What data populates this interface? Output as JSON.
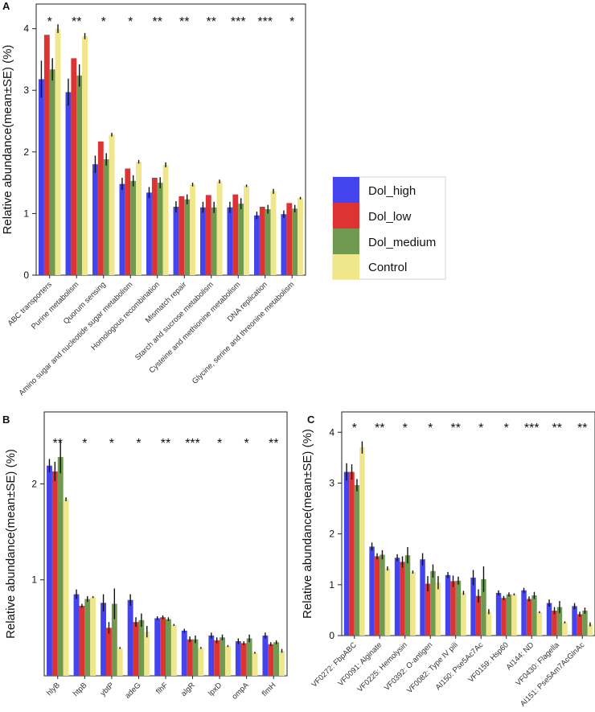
{
  "legend": {
    "entries": [
      {
        "name": "Dol_high",
        "color": "#4444ee"
      },
      {
        "name": "Dol_low",
        "color": "#dd3333"
      },
      {
        "name": "Dol_medium",
        "color": "#6f9a4f"
      },
      {
        "name": "Control",
        "color": "#f0e68c"
      }
    ],
    "placement": "right of panel A"
  },
  "chart_data": [
    {
      "panel": "A",
      "type": "bar",
      "ylabel": "Relative abundance(mean±SE) (%)",
      "ylim": [
        0,
        4.4
      ],
      "yticks": [
        "0",
        "1",
        "2",
        "3",
        "4"
      ],
      "categories": [
        "ABC transporters",
        "Purine metabolism",
        "Quorum sensing",
        "Amino sugar and nucleotide sugar metabolism",
        "Homologous recombination",
        "Mismatch repair",
        "Starch and sucrose metabolism",
        "Cysteine and methionine metabolism",
        "DNA replication",
        "Glycine, serine and threonine metabolism"
      ],
      "significance": [
        "*",
        "**",
        "*",
        "*",
        "**",
        "**",
        "**",
        "***",
        "***",
        "*"
      ],
      "series": [
        {
          "name": "Dol_high",
          "values": [
            3.18,
            2.97,
            1.8,
            1.48,
            1.34,
            1.11,
            1.1,
            1.1,
            0.97,
            0.99
          ],
          "errors": [
            0.3,
            0.22,
            0.14,
            0.1,
            0.09,
            0.09,
            0.09,
            0.09,
            0.06,
            0.06
          ]
        },
        {
          "name": "Dol_low",
          "values": [
            3.9,
            3.52,
            2.17,
            1.73,
            1.58,
            1.28,
            1.3,
            1.31,
            1.11,
            1.17
          ]
        },
        {
          "name": "Dol_medium",
          "values": [
            3.34,
            3.24,
            1.88,
            1.53,
            1.5,
            1.23,
            1.1,
            1.16,
            1.07,
            1.08
          ],
          "errors": [
            0.18,
            0.18,
            0.1,
            0.09,
            0.09,
            0.08,
            0.09,
            0.09,
            0.07,
            0.06
          ]
        },
        {
          "name": "Control",
          "values": [
            4.0,
            3.88,
            2.28,
            1.84,
            1.79,
            1.47,
            1.52,
            1.45,
            1.36,
            1.25
          ],
          "errors": [
            0.07,
            0.05,
            0.03,
            0.03,
            0.04,
            0.03,
            0.03,
            0.02,
            0.04,
            0.02
          ]
        }
      ]
    },
    {
      "panel": "B",
      "type": "bar",
      "ylabel": "Relative abundance(mean±SE) (%)",
      "ylim": [
        0,
        2.75
      ],
      "yticks": [
        "1",
        "2"
      ],
      "categories": [
        "hlyB",
        "htpB",
        "ybtP",
        "adeG",
        "flhF",
        "algR",
        "lpxD",
        "ompA",
        "flmH"
      ],
      "significance": [
        "**",
        "*",
        "*",
        "*",
        "**",
        "***",
        "*",
        "*",
        "**"
      ],
      "series": [
        {
          "name": "Dol_high",
          "values": [
            2.19,
            0.85,
            0.76,
            0.79,
            0.6,
            0.47,
            0.42,
            0.36,
            0.42
          ],
          "errors": [
            0.07,
            0.05,
            0.09,
            0.06,
            0.02,
            0.02,
            0.03,
            0.03,
            0.03
          ]
        },
        {
          "name": "Dol_low",
          "values": [
            2.13,
            0.73,
            0.5,
            0.56,
            0.61,
            0.38,
            0.37,
            0.34,
            0.33
          ],
          "errors": [
            0.1,
            0.02,
            0.06,
            0.05,
            0.02,
            0.03,
            0.03,
            0.02,
            0.02
          ]
        },
        {
          "name": "Dol_medium",
          "values": [
            2.28,
            0.8,
            0.75,
            0.58,
            0.59,
            0.38,
            0.4,
            0.39,
            0.35
          ],
          "errors": [
            0.17,
            0.03,
            0.16,
            0.07,
            0.02,
            0.04,
            0.03,
            0.04,
            0.02
          ]
        },
        {
          "name": "Control",
          "values": [
            1.84,
            0.82,
            0.29,
            0.46,
            0.53,
            0.29,
            0.31,
            0.24,
            0.26
          ],
          "errors": [
            0.02,
            0.01,
            0.01,
            0.06,
            0.01,
            0.01,
            0.01,
            0.01,
            0.02
          ]
        }
      ]
    },
    {
      "panel": "C",
      "type": "bar",
      "ylabel": "Relative abundance(mean±SE) (%)",
      "ylim": [
        0,
        4.4
      ],
      "yticks": [
        "0",
        "1",
        "2",
        "3",
        "4"
      ],
      "categories": [
        "VF0272: FbpABC",
        "VF0091: Alginate",
        "VF0225: Hemolysin",
        "VF0392: O-antigen",
        "VF0082: Type IV pili",
        "AI150: Pse5Ac7Ac",
        "VF0159: Hsp60",
        "AI144: ND",
        "VF0430: Flagella",
        "AI151: Pse5Am7AcGlnAc"
      ],
      "significance": [
        "*",
        "**",
        "*",
        "*",
        "**",
        "*",
        "*",
        "***",
        "**",
        "**"
      ],
      "series": [
        {
          "name": "Dol_high",
          "values": [
            3.22,
            1.75,
            1.53,
            1.5,
            1.19,
            1.14,
            0.84,
            0.89,
            0.64,
            0.58
          ],
          "errors": [
            0.17,
            0.08,
            0.07,
            0.12,
            0.06,
            0.15,
            0.05,
            0.05,
            0.07,
            0.06
          ]
        },
        {
          "name": "Dol_low",
          "values": [
            3.22,
            1.56,
            1.45,
            1.02,
            1.07,
            0.78,
            0.74,
            0.72,
            0.49,
            0.42
          ],
          "errors": [
            0.15,
            0.06,
            0.11,
            0.15,
            0.11,
            0.13,
            0.04,
            0.05,
            0.07,
            0.05
          ]
        },
        {
          "name": "Dol_medium",
          "values": [
            2.96,
            1.59,
            1.58,
            1.27,
            1.08,
            1.11,
            0.81,
            0.79,
            0.56,
            0.49
          ],
          "errors": [
            0.12,
            0.09,
            0.16,
            0.13,
            0.08,
            0.25,
            0.04,
            0.07,
            0.12,
            0.06
          ]
        },
        {
          "name": "Control",
          "values": [
            3.7,
            1.32,
            1.25,
            1.04,
            0.84,
            0.47,
            0.81,
            0.46,
            0.26,
            0.22
          ],
          "errors": [
            0.12,
            0.04,
            0.03,
            0.13,
            0.04,
            0.05,
            0.02,
            0.02,
            0.02,
            0.04
          ]
        }
      ]
    }
  ],
  "panel_labels": [
    "A",
    "B",
    "C"
  ]
}
